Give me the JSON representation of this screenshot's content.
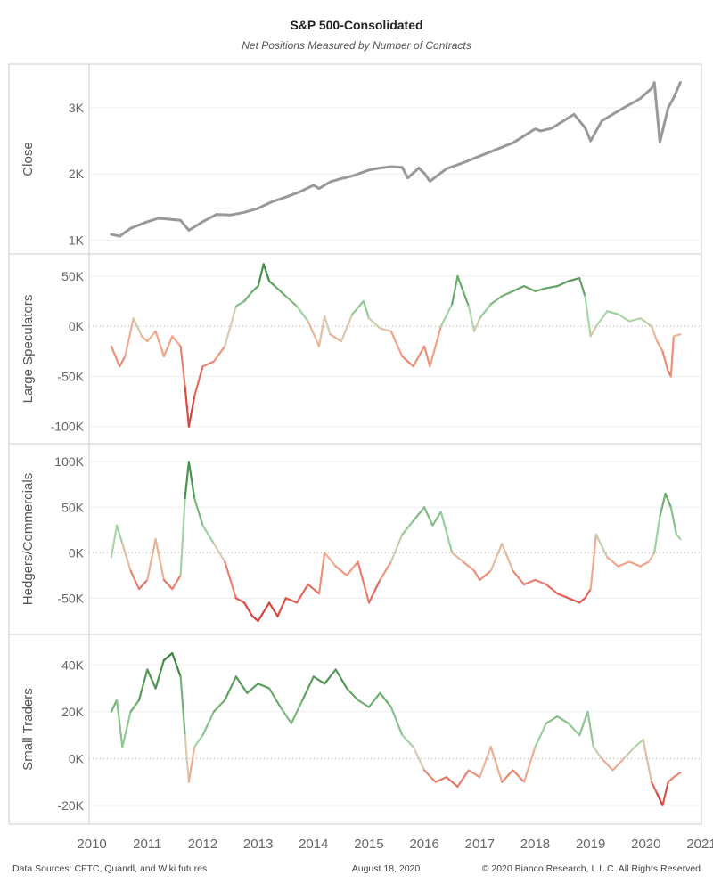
{
  "title": "S&P 500-Consolidated",
  "subtitle": "Net Positions Measured by Number of Contracts",
  "footer": {
    "sources": "Data Sources: CFTC, Quandl, and Wiki futures",
    "date": "August 18, 2020",
    "copyright": "© 2020 Bianco Research, L.L.C. All Rights Reserved"
  },
  "colors": {
    "close_line": "#999999",
    "positive_strong": "#2e7d32",
    "positive_light": "#a5d6a7",
    "neutral": "#d7ccb0",
    "negative_light": "#f4a58a",
    "negative_strong": "#d32f2f",
    "grid": "#eeeeee",
    "zero_line": "#aaaaaa",
    "frame": "#cccccc"
  },
  "chart_data": [
    {
      "id": "close",
      "type": "line",
      "ylabel": "Close",
      "ylim": [
        900,
        3550
      ],
      "yticks": [
        1000,
        2000,
        3000
      ],
      "ytick_labels": [
        "1K",
        "2K",
        "3K"
      ],
      "color_mode": "solid",
      "x": [
        2010.35,
        2010.5,
        2010.7,
        2011.0,
        2011.2,
        2011.35,
        2011.6,
        2011.75,
        2012.0,
        2012.25,
        2012.5,
        2012.75,
        2013.0,
        2013.25,
        2013.5,
        2013.75,
        2014.0,
        2014.1,
        2014.3,
        2014.5,
        2014.7,
        2015.0,
        2015.2,
        2015.4,
        2015.6,
        2015.7,
        2015.9,
        2016.0,
        2016.1,
        2016.4,
        2016.7,
        2017.0,
        2017.3,
        2017.6,
        2018.0,
        2018.1,
        2018.3,
        2018.7,
        2018.9,
        2019.0,
        2019.2,
        2019.4,
        2019.6,
        2019.9,
        2020.1,
        2020.15,
        2020.25,
        2020.4,
        2020.5,
        2020.62
      ],
      "values": [
        1090,
        1060,
        1180,
        1280,
        1330,
        1320,
        1300,
        1150,
        1280,
        1390,
        1380,
        1420,
        1480,
        1580,
        1650,
        1730,
        1830,
        1780,
        1880,
        1930,
        1970,
        2060,
        2090,
        2110,
        2100,
        1940,
        2090,
        2010,
        1890,
        2080,
        2170,
        2270,
        2370,
        2470,
        2680,
        2650,
        2690,
        2900,
        2700,
        2500,
        2800,
        2900,
        3000,
        3140,
        3290,
        3380,
        2480,
        3000,
        3150,
        3380
      ]
    },
    {
      "id": "large_speculators",
      "type": "line",
      "ylabel": "Large Speculators",
      "ylim": [
        -110000,
        65000
      ],
      "yticks": [
        -100000,
        -50000,
        0,
        50000
      ],
      "ytick_labels": [
        "-100K",
        "-50K",
        "0K",
        "50K"
      ],
      "color_mode": "diverging",
      "x": [
        2010.35,
        2010.5,
        2010.6,
        2010.75,
        2010.9,
        2011.0,
        2011.15,
        2011.3,
        2011.45,
        2011.6,
        2011.68,
        2011.75,
        2011.85,
        2012.0,
        2012.2,
        2012.4,
        2012.6,
        2012.75,
        2012.9,
        2013.0,
        2013.1,
        2013.2,
        2013.3,
        2013.5,
        2013.7,
        2013.9,
        2014.1,
        2014.2,
        2014.3,
        2014.5,
        2014.7,
        2014.9,
        2015.0,
        2015.2,
        2015.4,
        2015.6,
        2015.8,
        2016.0,
        2016.1,
        2016.3,
        2016.5,
        2016.6,
        2016.8,
        2016.9,
        2017.0,
        2017.2,
        2017.4,
        2017.6,
        2017.8,
        2018.0,
        2018.2,
        2018.4,
        2018.6,
        2018.8,
        2018.9,
        2019.0,
        2019.1,
        2019.3,
        2019.5,
        2019.7,
        2019.9,
        2020.1,
        2020.2,
        2020.3,
        2020.4,
        2020.45,
        2020.5,
        2020.62
      ],
      "values": [
        -20000,
        -40000,
        -30000,
        8000,
        -10000,
        -15000,
        -5000,
        -30000,
        -10000,
        -20000,
        -60000,
        -100000,
        -70000,
        -40000,
        -35000,
        -20000,
        20000,
        25000,
        35000,
        40000,
        62000,
        45000,
        40000,
        30000,
        20000,
        5000,
        -20000,
        10000,
        -8000,
        -15000,
        12000,
        25000,
        8000,
        -2000,
        -5000,
        -30000,
        -40000,
        -20000,
        -40000,
        0,
        22000,
        50000,
        20000,
        -5000,
        8000,
        22000,
        30000,
        35000,
        40000,
        35000,
        38000,
        40000,
        45000,
        48000,
        30000,
        -10000,
        0,
        15000,
        12000,
        5000,
        8000,
        0,
        -15000,
        -25000,
        -45000,
        -50000,
        -10000,
        -8000
      ]
    },
    {
      "id": "hedgers_commercials",
      "type": "line",
      "ylabel": "Hedgers/Commercials",
      "ylim": [
        -82000,
        112000
      ],
      "yticks": [
        -50000,
        0,
        50000,
        100000
      ],
      "ytick_labels": [
        "-50K",
        "0K",
        "50K",
        "100K"
      ],
      "color_mode": "diverging",
      "x": [
        2010.35,
        2010.45,
        2010.55,
        2010.7,
        2010.85,
        2011.0,
        2011.15,
        2011.3,
        2011.45,
        2011.6,
        2011.68,
        2011.75,
        2011.85,
        2012.0,
        2012.2,
        2012.4,
        2012.6,
        2012.75,
        2012.9,
        2013.0,
        2013.2,
        2013.35,
        2013.5,
        2013.7,
        2013.9,
        2014.1,
        2014.2,
        2014.4,
        2014.6,
        2014.8,
        2015.0,
        2015.2,
        2015.4,
        2015.6,
        2015.8,
        2016.0,
        2016.15,
        2016.3,
        2016.5,
        2016.7,
        2016.9,
        2017.0,
        2017.2,
        2017.4,
        2017.6,
        2017.8,
        2018.0,
        2018.2,
        2018.4,
        2018.6,
        2018.8,
        2018.9,
        2019.0,
        2019.1,
        2019.3,
        2019.5,
        2019.7,
        2019.9,
        2020.05,
        2020.15,
        2020.25,
        2020.35,
        2020.45,
        2020.55,
        2020.62
      ],
      "values": [
        -5000,
        30000,
        10000,
        -20000,
        -40000,
        -30000,
        15000,
        -30000,
        -40000,
        -25000,
        60000,
        100000,
        60000,
        30000,
        10000,
        -10000,
        -50000,
        -55000,
        -70000,
        -75000,
        -55000,
        -70000,
        -50000,
        -55000,
        -35000,
        -45000,
        0,
        -15000,
        -25000,
        -10000,
        -55000,
        -30000,
        -10000,
        20000,
        35000,
        50000,
        30000,
        45000,
        0,
        -10000,
        -20000,
        -30000,
        -20000,
        10000,
        -20000,
        -35000,
        -30000,
        -35000,
        -45000,
        -50000,
        -55000,
        -50000,
        -40000,
        20000,
        -5000,
        -15000,
        -10000,
        -15000,
        -10000,
        0,
        40000,
        65000,
        50000,
        20000,
        15000
      ]
    },
    {
      "id": "small_traders",
      "type": "line",
      "ylabel": "Small Traders",
      "ylim": [
        -25000,
        50000
      ],
      "yticks": [
        -20000,
        0,
        20000,
        40000
      ],
      "ytick_labels": [
        "-20K",
        "0K",
        "20K",
        "40K"
      ],
      "color_mode": "diverging",
      "x": [
        2010.35,
        2010.45,
        2010.55,
        2010.7,
        2010.85,
        2011.0,
        2011.15,
        2011.3,
        2011.45,
        2011.6,
        2011.68,
        2011.75,
        2011.85,
        2012.0,
        2012.2,
        2012.4,
        2012.6,
        2012.8,
        2013.0,
        2013.2,
        2013.4,
        2013.6,
        2013.8,
        2014.0,
        2014.2,
        2014.4,
        2014.6,
        2014.8,
        2015.0,
        2015.2,
        2015.4,
        2015.6,
        2015.8,
        2016.0,
        2016.2,
        2016.4,
        2016.6,
        2016.8,
        2017.0,
        2017.2,
        2017.4,
        2017.6,
        2017.8,
        2018.0,
        2018.2,
        2018.4,
        2018.6,
        2018.8,
        2018.95,
        2019.05,
        2019.2,
        2019.4,
        2019.6,
        2019.8,
        2019.95,
        2020.1,
        2020.2,
        2020.3,
        2020.4,
        2020.5,
        2020.62
      ],
      "values": [
        20000,
        25000,
        5000,
        20000,
        25000,
        38000,
        30000,
        42000,
        45000,
        35000,
        10000,
        -10000,
        5000,
        10000,
        20000,
        25000,
        35000,
        28000,
        32000,
        30000,
        22000,
        15000,
        25000,
        35000,
        32000,
        38000,
        30000,
        25000,
        22000,
        28000,
        22000,
        10000,
        5000,
        -5000,
        -10000,
        -8000,
        -12000,
        -5000,
        -8000,
        5000,
        -10000,
        -5000,
        -10000,
        5000,
        15000,
        18000,
        15000,
        10000,
        20000,
        5000,
        0,
        -5000,
        0,
        5000,
        8000,
        -10000,
        -15000,
        -20000,
        -10000,
        -8000,
        -6000
      ]
    }
  ],
  "x_axis": {
    "xlim": [
      2009.95,
      2021.0
    ],
    "ticks": [
      2010,
      2011,
      2012,
      2013,
      2014,
      2015,
      2016,
      2017,
      2018,
      2019,
      2020,
      2021
    ],
    "labels": [
      "2010",
      "2011",
      "2012",
      "2013",
      "2014",
      "2015",
      "2016",
      "2017",
      "2018",
      "2019",
      "2020",
      "2021"
    ]
  }
}
